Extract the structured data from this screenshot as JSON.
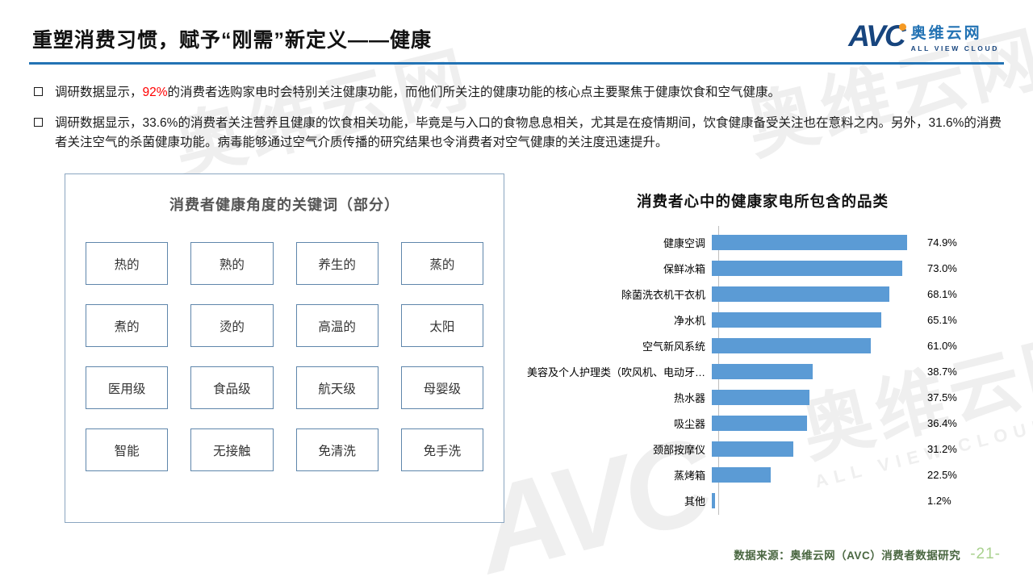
{
  "header": {
    "title": "重塑消费习惯，赋予“刚需”新定义——健康",
    "accent_color": "#2373B4",
    "logo": {
      "avc": "AVC",
      "cn": "奥维云网",
      "en": "ALL VIEW CLOUD",
      "navy": "#17457E",
      "orange": "#F59A23"
    }
  },
  "bullets": {
    "b1": {
      "pre": "调研数据显示，",
      "highlight": "92%",
      "highlight_color": "#FF0000",
      "post": "的消费者选购家电时会特别关注健康功能，而他们所关注的健康功能的核心点主要聚焦于健康饮食和空气健康。"
    },
    "b2": {
      "text": "调研数据显示，33.6%的消费者关注营养且健康的饮食相关功能，毕竟是与入口的食物息息相关，尤其是在疫情期间，饮食健康备受关注也在意料之内。另外，31.6%的消费者关注空气的杀菌健康功能。病毒能够通过空气介质传播的研究结果也令消费者对空气健康的关注度迅速提升。"
    }
  },
  "keywords_panel": {
    "title": "消费者健康角度的关键词（部分）",
    "rows": [
      [
        "热的",
        "熟的",
        "养生的",
        "蒸的"
      ],
      [
        "煮的",
        "烫的",
        "高温的",
        "太阳"
      ],
      [
        "医用级",
        "食品级",
        "航天级",
        "母婴级"
      ],
      [
        "智能",
        "无接触",
        "免清洗",
        "免手洗"
      ]
    ]
  },
  "chart_data": {
    "type": "bar",
    "orientation": "horizontal",
    "title": "消费者心中的健康家电所包含的品类",
    "categories": [
      "健康空调",
      "保鲜冰箱",
      "除菌洗衣机干衣机",
      "净水机",
      "空气新风系统",
      "美容及个人护理类（吹风机、电动牙…",
      "热水器",
      "吸尘器",
      "颈部按摩仪",
      "蒸烤箱",
      "其他"
    ],
    "values": [
      74.9,
      73.0,
      68.1,
      65.1,
      61.0,
      38.7,
      37.5,
      36.4,
      31.2,
      22.5,
      1.2
    ],
    "labels": [
      "74.9%",
      "73.0%",
      "68.1%",
      "65.1%",
      "61.0%",
      "38.7%",
      "37.5%",
      "36.4%",
      "31.2%",
      "22.5%",
      "1.2%"
    ],
    "bar_color": "#5B9BD5",
    "xlim": [
      0,
      80
    ],
    "grid": false,
    "legend": "none"
  },
  "watermark": {
    "cn": "奥维云网",
    "en": "ALL VIEW CLOUD",
    "avc": "AVC"
  },
  "footer": {
    "source": "数据来源：奥维云网（AVC）消费者数据研究",
    "source_color": "#4a6741",
    "page": "-21-",
    "page_color": "#A9D18E"
  }
}
